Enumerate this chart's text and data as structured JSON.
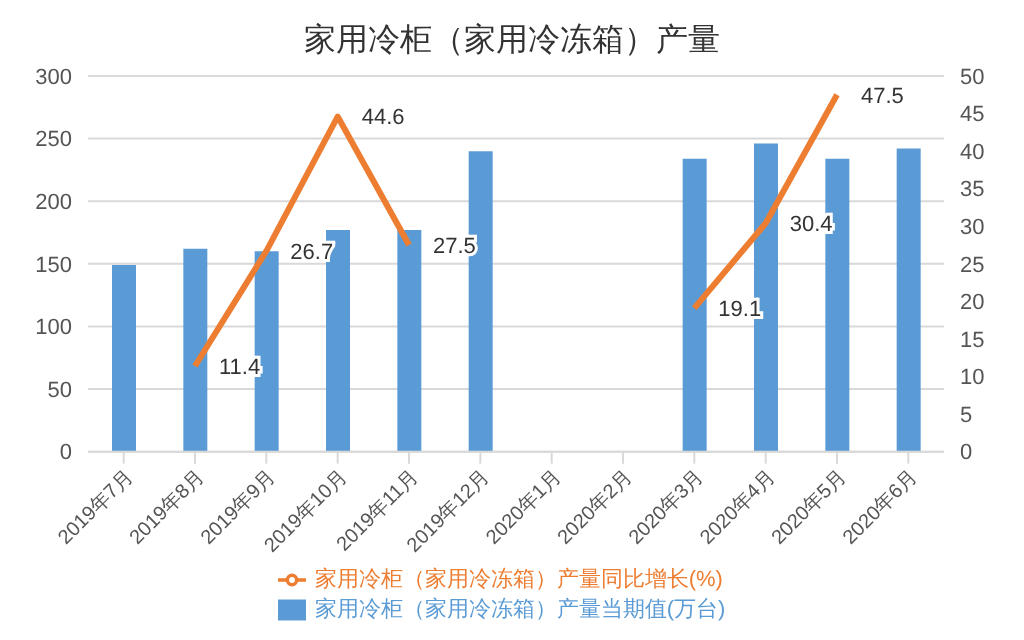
{
  "chart_data": {
    "type": "bar",
    "title": "家用冷柜（家用冷冻箱）产量",
    "categories": [
      "2019年7月",
      "2019年8月",
      "2019年9月",
      "2019年10月",
      "2019年11月",
      "2019年12月",
      "2020年1月",
      "2020年2月",
      "2020年3月",
      "2020年4月",
      "2020年5月",
      "2020年6月"
    ],
    "series": [
      {
        "name": "家用冷柜（家用冷冻箱）产量当期值(万台)",
        "color": "#5b9bd5",
        "values": [
          149,
          162,
          160,
          177,
          177,
          240,
          null,
          null,
          234,
          246,
          234,
          242
        ]
      },
      {
        "name": "家用冷柜（家用冷冻箱）产量同比增长(%)",
        "type": "line",
        "axis": "y2",
        "color": "#ed7d31",
        "values": [
          null,
          11.4,
          26.7,
          44.6,
          27.5,
          null,
          null,
          null,
          19.1,
          30.4,
          47.5,
          null
        ],
        "value_labels": [
          null,
          "11.4",
          "26.7",
          "44.6",
          "27.5",
          null,
          null,
          null,
          "19.1",
          "30.4",
          "47.5",
          null
        ]
      }
    ],
    "ylim": [
      0,
      300
    ],
    "yticks": [
      0,
      50,
      100,
      150,
      200,
      250,
      300
    ],
    "y2lim": [
      0,
      50
    ],
    "y2ticks": [
      0,
      5,
      10,
      15,
      20,
      25,
      30,
      35,
      40,
      45,
      50
    ],
    "grid": "y",
    "legend": "bottom",
    "marker": "none"
  }
}
